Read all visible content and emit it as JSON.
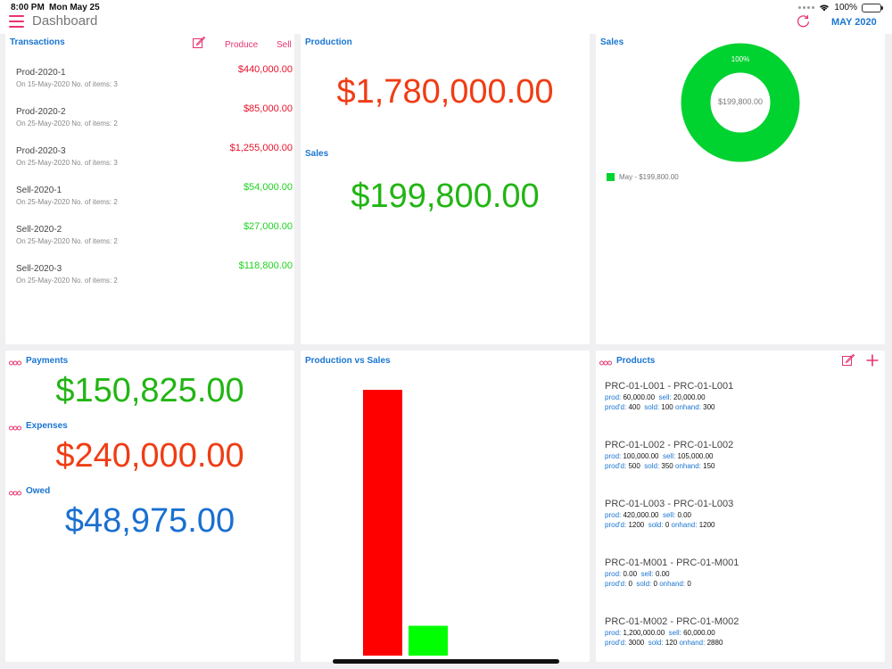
{
  "status": {
    "time": "8:00 PM",
    "date": "Mon May 25",
    "battery": "100%"
  },
  "nav": {
    "title": "Dashboard",
    "month": "MAY 2020"
  },
  "transactions": {
    "title": "Transactions",
    "produce_label": "Produce",
    "sell_label": "Sell",
    "items": [
      {
        "name": "Prod-2020-1",
        "sub": "On 15-May-2020  No. of items: 3",
        "amount": "$440,000.00",
        "color": "#e8122b"
      },
      {
        "name": "Prod-2020-2",
        "sub": "On 25-May-2020  No. of items: 2",
        "amount": "$85,000.00",
        "color": "#e8122b"
      },
      {
        "name": "Prod-2020-3",
        "sub": "On 25-May-2020  No. of items: 3",
        "amount": "$1,255,000.00",
        "color": "#e8122b"
      },
      {
        "name": "Sell-2020-1",
        "sub": "On 25-May-2020  No. of items: 2",
        "amount": "$54,000.00",
        "color": "#1ed21e"
      },
      {
        "name": "Sell-2020-2",
        "sub": "On 25-May-2020  No. of items: 2",
        "amount": "$27,000.00",
        "color": "#1ed21e"
      },
      {
        "name": "Sell-2020-3",
        "sub": "On 25-May-2020  No. of items: 2",
        "amount": "$118,800.00",
        "color": "#1ed21e"
      }
    ]
  },
  "production": {
    "title": "Production",
    "amount": "$1,780,000.00",
    "sales_title": "Sales",
    "sales_amount": "$199,800.00"
  },
  "sales_chart": {
    "title": "Sales",
    "center": "$199,800.00",
    "percent": "100%",
    "legend": "May - $199,800.00",
    "color": "#00d230"
  },
  "finance": {
    "payments_title": "Payments",
    "payments": "$150,825.00",
    "expenses_title": "Expenses",
    "expenses": "$240,000.00",
    "owed_title": "Owed",
    "owed": "$48,975.00"
  },
  "pvs": {
    "title": "Production vs Sales"
  },
  "chart_data": {
    "type": "bar",
    "categories": [
      "",
      ""
    ],
    "values": [
      1780000,
      199800
    ],
    "colors": [
      "#ff0000",
      "#00ff00"
    ],
    "title": "Production vs Sales",
    "xlabel": "",
    "ylabel": "",
    "ylim": [
      0,
      1780000
    ],
    "grid": false
  },
  "products": {
    "title": "Products",
    "items": [
      {
        "title": "PRC-01-L001 - PRC-01-L001",
        "prod": "60,000.00",
        "sell": "20,000.00",
        "prodd": "400",
        "sold": "100",
        "onhand": "300"
      },
      {
        "title": "PRC-01-L002 - PRC-01-L002",
        "prod": "100,000.00",
        "sell": "105,000.00",
        "prodd": "500",
        "sold": "350",
        "onhand": "150"
      },
      {
        "title": "PRC-01-L003 - PRC-01-L003",
        "prod": "420,000.00",
        "sell": "0.00",
        "prodd": "1200",
        "sold": "0",
        "onhand": "1200"
      },
      {
        "title": "PRC-01-M001 - PRC-01-M001",
        "prod": "0.00",
        "sell": "0.00",
        "prodd": "0",
        "sold": "0",
        "onhand": "0"
      },
      {
        "title": "PRC-01-M002 - PRC-01-M002",
        "prod": "1,200,000.00",
        "sell": "60,000.00",
        "prodd": "3000",
        "sold": "120",
        "onhand": "2880"
      }
    ],
    "labels": {
      "prod": "prod:",
      "sell": "sell:",
      "prodd": "prod'd:",
      "sold": "sold:",
      "onhand": "onhand:"
    }
  },
  "colors": {
    "accent": "#e8336e",
    "blue": "#1a75d2",
    "red": "#f03c14",
    "green": "#22b514",
    "owed": "#1a6fd0"
  }
}
